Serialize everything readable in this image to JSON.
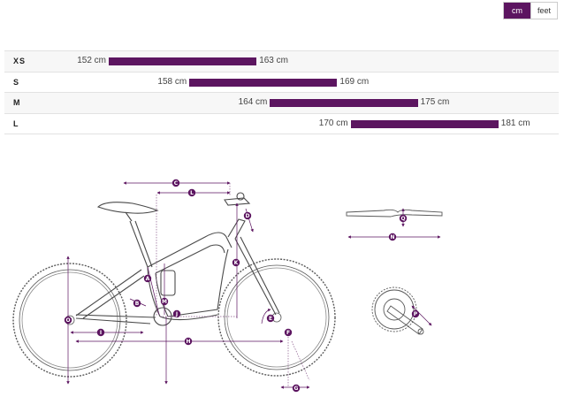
{
  "unit_toggle": {
    "cm_label": "cm",
    "feet_label": "feet",
    "active": "cm"
  },
  "sizes": [
    {
      "label": "XS",
      "min": "152 cm",
      "max": "163 cm",
      "min_cm": 152,
      "max_cm": 163
    },
    {
      "label": "S",
      "min": "158 cm",
      "max": "169 cm",
      "min_cm": 158,
      "max_cm": 169
    },
    {
      "label": "M",
      "min": "164 cm",
      "max": "175 cm",
      "min_cm": 164,
      "max_cm": 175
    },
    {
      "label": "L",
      "min": "170 cm",
      "max": "181 cm",
      "min_cm": 170,
      "max_cm": 181
    }
  ],
  "geometry_markers": {
    "A": "A",
    "B": "B",
    "C": "C",
    "D": "D",
    "E": "E",
    "F": "F",
    "G": "G",
    "H": "H",
    "I": "I",
    "J": "J",
    "K": "K",
    "L": "L",
    "M": "M",
    "N": "N",
    "O": "O",
    "P": "P",
    "Q": "Q"
  },
  "colors": {
    "accent": "#5c1560",
    "bike_line": "#5a5a5a"
  }
}
